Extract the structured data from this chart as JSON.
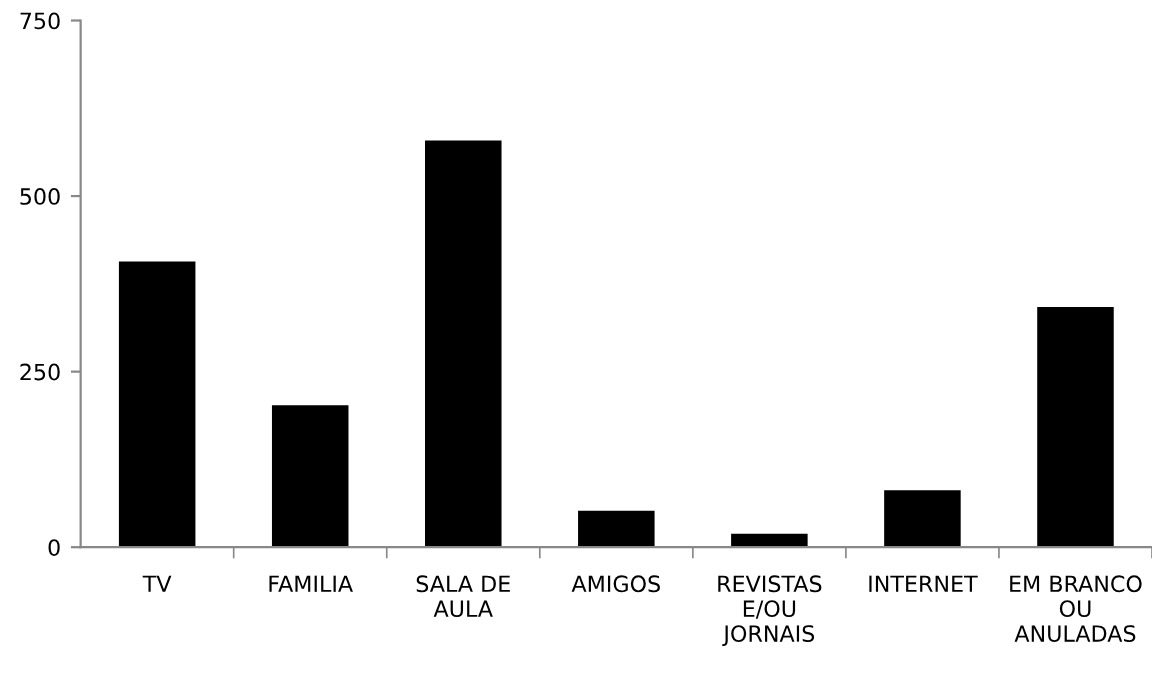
{
  "chart_data": {
    "type": "bar",
    "categories": [
      "TV",
      "FAMILIA",
      "SALA DE AULA",
      "AMIGOS",
      "REVISTAS E/OU JORNAIS",
      "INTERNET",
      "EM BRANCO OU ANULADAS"
    ],
    "values": [
      407,
      202,
      579,
      52,
      19,
      81,
      342
    ],
    "color": "#000000",
    "ylim": [
      0,
      750
    ],
    "yticks": [
      0,
      250,
      500,
      750
    ],
    "grid": false,
    "legend": false
  }
}
